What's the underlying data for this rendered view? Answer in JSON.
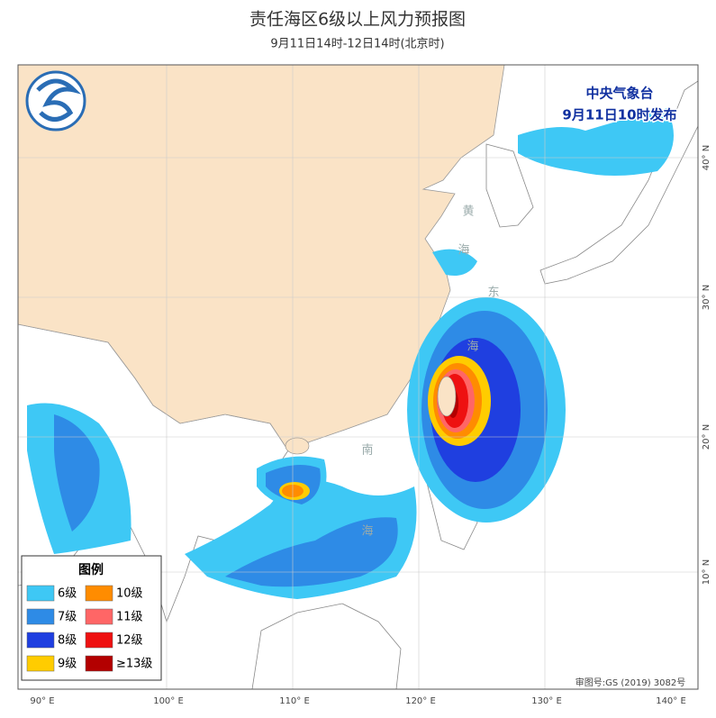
{
  "header": {
    "title": "责任海区6级以上风力预报图",
    "subtitle": "9月11日14时-12日14时(北京时)"
  },
  "issuer": {
    "agency": "中央气象台",
    "issued": "9月11日10时发布"
  },
  "legend": {
    "title": "图例",
    "items": [
      {
        "label": "6级",
        "color": "#3ec8f5"
      },
      {
        "label": "7级",
        "color": "#2e8be6"
      },
      {
        "label": "8级",
        "color": "#1f3fe0"
      },
      {
        "label": "9级",
        "color": "#ffcc00"
      },
      {
        "label": "10级",
        "color": "#ff8c00"
      },
      {
        "label": "11级",
        "color": "#ff6666"
      },
      {
        "label": "12级",
        "color": "#ee1111"
      },
      {
        "label": "≥13级",
        "color": "#b30000"
      }
    ]
  },
  "lon_labels": [
    "90° E",
    "100° E",
    "110° E",
    "120° E",
    "130° E",
    "140° E"
  ],
  "lat_labels": [
    "40° N",
    "30° N",
    "20° N",
    "10° N"
  ],
  "sea_labels": [
    "黄",
    "海",
    "东",
    "海",
    "南",
    "海"
  ],
  "approval": "审图号:GS (2019) 3082号"
}
